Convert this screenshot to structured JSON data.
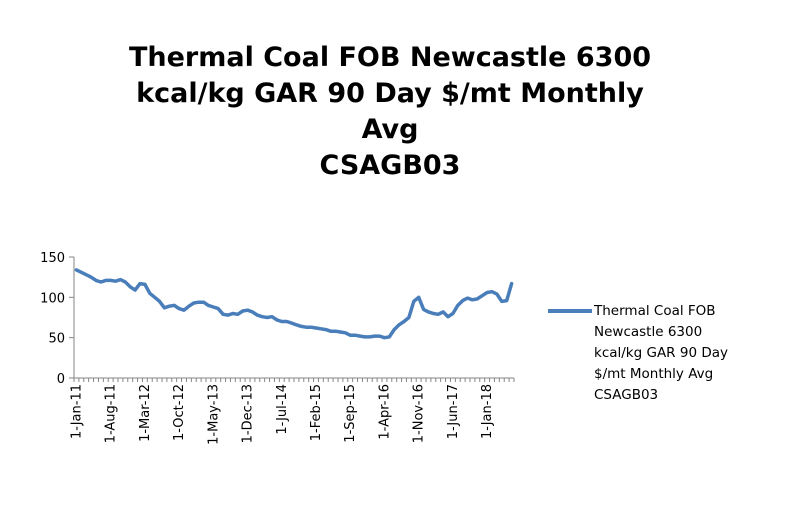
{
  "chart_data": {
    "type": "line",
    "title_lines": [
      "Thermal Coal FOB Newcastle 6300",
      "kcal/kg GAR 90 Day $/mt Monthly",
      "Avg",
      "CSAGB03"
    ],
    "xlabel": "",
    "ylabel": "",
    "ylim": [
      0,
      150
    ],
    "yticks": [
      0,
      50,
      100,
      150
    ],
    "grid": false,
    "legend_position": "right",
    "x_tick_labels": [
      "1-Jan-11",
      "1-Aug-11",
      "1-Mar-12",
      "1-Oct-12",
      "1-May-13",
      "1-Dec-13",
      "1-Jul-14",
      "1-Feb-15",
      "1-Sep-15",
      "1-Apr-16",
      "1-Nov-16",
      "1-Jun-17",
      "1-Jan-18"
    ],
    "x_start": "1-Jan-11",
    "series": [
      {
        "name": "Thermal Coal FOB Newcastle 6300 kcal/kg GAR 90 Day $/mt Monthly Avg CSAGB03",
        "color": "#4a7ebb",
        "values": [
          134,
          131,
          128,
          125,
          121,
          119,
          121,
          121,
          120,
          122,
          119,
          113,
          109,
          117,
          116,
          105,
          100,
          95,
          87,
          89,
          90,
          86,
          84,
          89,
          93,
          94,
          94,
          90,
          88,
          86,
          79,
          78,
          80,
          79,
          83,
          84,
          82,
          78,
          76,
          75,
          76,
          72,
          70,
          70,
          68,
          66,
          64,
          63,
          63,
          62,
          61,
          60,
          58,
          58,
          57,
          56,
          53,
          53,
          52,
          51,
          51,
          52,
          52,
          50,
          51,
          60,
          66,
          70,
          75,
          95,
          100,
          85,
          82,
          80,
          79,
          82,
          76,
          80,
          90,
          96,
          99,
          97,
          98,
          102,
          106,
          107,
          104,
          95,
          96,
          117
        ]
      }
    ]
  },
  "legend": {
    "lines": [
      "Thermal Coal FOB",
      "Newcastle 6300",
      "kcal/kg GAR 90 Day",
      "$/mt Monthly Avg",
      "CSAGB03"
    ]
  }
}
